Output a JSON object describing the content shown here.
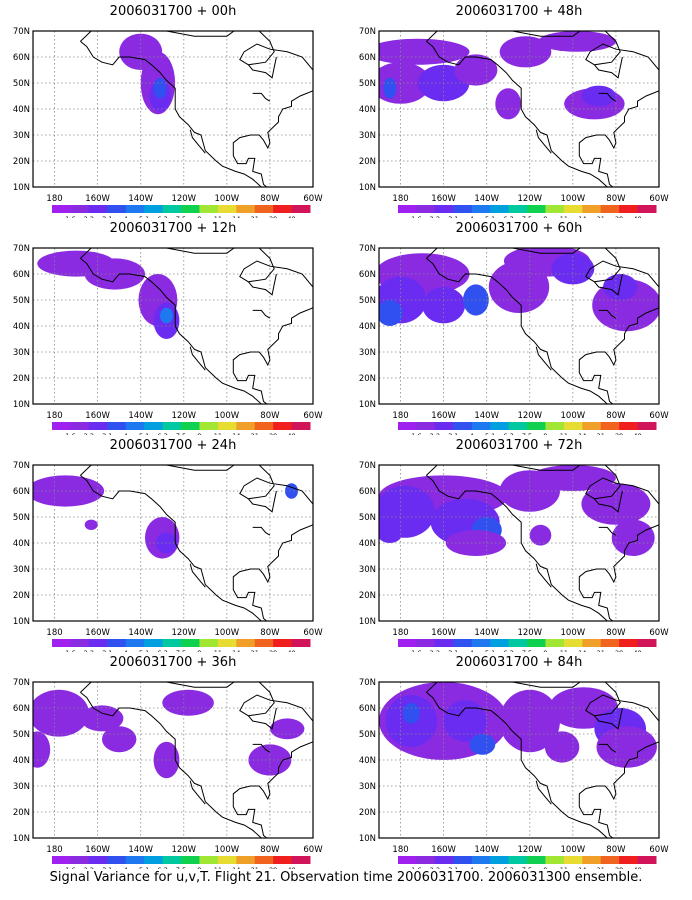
{
  "panels": [
    {
      "title": "2006031700 + 00h",
      "lead": "00h"
    },
    {
      "title": "2006031700 + 48h",
      "lead": "48h"
    },
    {
      "title": "2006031700 + 12h",
      "lead": "12h"
    },
    {
      "title": "2006031700 + 60h",
      "lead": "60h"
    },
    {
      "title": "2006031700 + 24h",
      "lead": "24h"
    },
    {
      "title": "2006031700 + 72h",
      "lead": "72h"
    },
    {
      "title": "2006031700 + 36h",
      "lead": "36h"
    },
    {
      "title": "2006031700 + 84h",
      "lead": "84h"
    }
  ],
  "lat_labels": [
    "70N",
    "60N",
    "50N",
    "40N",
    "30N",
    "20N",
    "10N"
  ],
  "lon_labels": [
    "180",
    "160W",
    "140W",
    "120W",
    "100W",
    "80W",
    "60W"
  ],
  "colorbar": {
    "labels": [
      "1.6",
      "2.2",
      "3.1",
      "4",
      "5.1",
      "6.3",
      "7.5",
      "9",
      "11",
      "14",
      "21",
      "29",
      "40"
    ],
    "colors": [
      "#a020f0",
      "#8a2be2",
      "#6a2cf0",
      "#3050f0",
      "#1e78f0",
      "#00a0e0",
      "#00c8a0",
      "#10d050",
      "#a0e632",
      "#e6dc32",
      "#f0a028",
      "#f06420",
      "#f01e1e",
      "#d2145a"
    ]
  },
  "footer": "Signal Variance for u,v,T. Flight 21. Observation time 2006031700. 2006031300 ensemble."
}
